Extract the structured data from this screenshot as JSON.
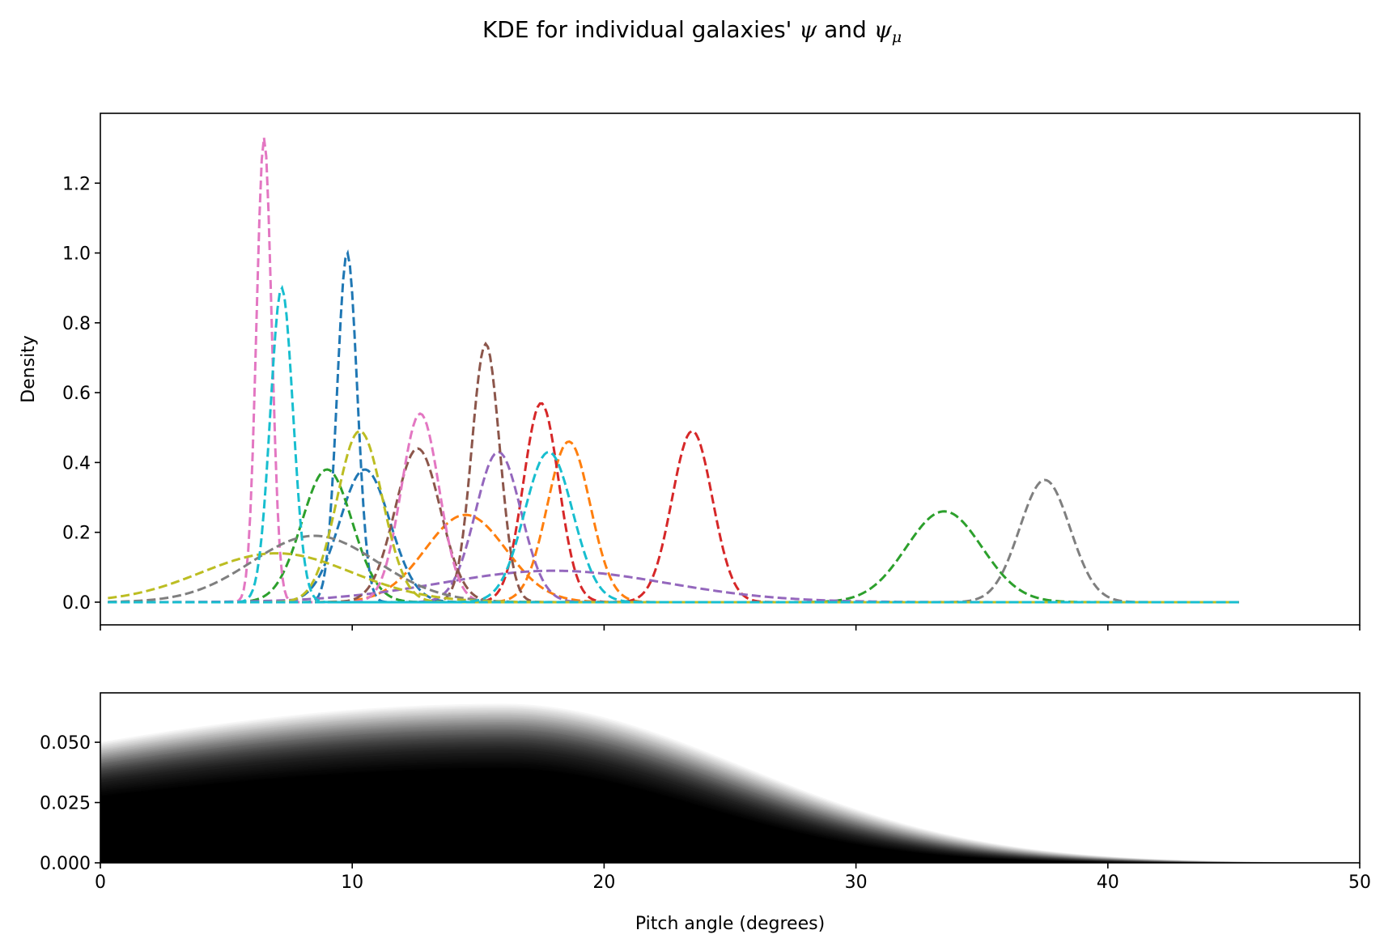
{
  "title": {
    "prefix": "KDE for individual galaxies' ",
    "psi": "ψ",
    "and": " and ",
    "psi_mu": "ψ",
    "sub": "μ"
  },
  "chart_data": [
    {
      "type": "line",
      "panel": "top",
      "ylabel": "Density",
      "xlabel": "",
      "xlim": [
        0,
        50
      ],
      "ylim": [
        -0.065,
        1.4
      ],
      "x_ticks": [
        0,
        10,
        20,
        30,
        40,
        50
      ],
      "show_x_tick_labels": false,
      "y_ticks": [
        0.0,
        0.2,
        0.4,
        0.6,
        0.8,
        1.0,
        1.2
      ],
      "y_tick_labels": [
        "0.0",
        "0.2",
        "0.4",
        "0.6",
        "0.8",
        "1.0",
        "1.2"
      ],
      "line_style": "dashed",
      "grid": false,
      "series": [
        {
          "color": "#1f77b4",
          "peak_x": 9.8,
          "peak_y": 1.0,
          "sigma": 0.4
        },
        {
          "color": "#1f77b4",
          "peak_x": 10.5,
          "peak_y": 0.38,
          "sigma": 1.0
        },
        {
          "color": "#ff7f0e",
          "peak_x": 14.5,
          "peak_y": 0.25,
          "sigma": 1.6
        },
        {
          "color": "#ff7f0e",
          "peak_x": 18.6,
          "peak_y": 0.46,
          "sigma": 0.85
        },
        {
          "color": "#2ca02c",
          "peak_x": 9.0,
          "peak_y": 0.38,
          "sigma": 1.0
        },
        {
          "color": "#2ca02c",
          "peak_x": 33.5,
          "peak_y": 0.26,
          "sigma": 1.5
        },
        {
          "color": "#d62728",
          "peak_x": 17.5,
          "peak_y": 0.57,
          "sigma": 0.7
        },
        {
          "color": "#d62728",
          "peak_x": 23.5,
          "peak_y": 0.49,
          "sigma": 0.8
        },
        {
          "color": "#9467bd",
          "peak_x": 15.8,
          "peak_y": 0.43,
          "sigma": 0.9
        },
        {
          "color": "#9467bd",
          "peak_x": 18.0,
          "peak_y": 0.09,
          "sigma": 4.5
        },
        {
          "color": "#8c564b",
          "peak_x": 12.6,
          "peak_y": 0.44,
          "sigma": 0.9
        },
        {
          "color": "#8c564b",
          "peak_x": 15.3,
          "peak_y": 0.74,
          "sigma": 0.55
        },
        {
          "color": "#e377c2",
          "peak_x": 6.5,
          "peak_y": 1.33,
          "sigma": 0.3
        },
        {
          "color": "#e377c2",
          "peak_x": 12.7,
          "peak_y": 0.54,
          "sigma": 0.75
        },
        {
          "color": "#7f7f7f",
          "peak_x": 8.5,
          "peak_y": 0.19,
          "sigma": 2.5
        },
        {
          "color": "#7f7f7f",
          "peak_x": 37.5,
          "peak_y": 0.35,
          "sigma": 1.0
        },
        {
          "color": "#bcbd22",
          "peak_x": 7.0,
          "peak_y": 0.14,
          "sigma": 3.0
        },
        {
          "color": "#bcbd22",
          "peak_x": 10.3,
          "peak_y": 0.49,
          "sigma": 0.9
        },
        {
          "color": "#17becf",
          "peak_x": 7.2,
          "peak_y": 0.9,
          "sigma": 0.45
        },
        {
          "color": "#17becf",
          "peak_x": 17.8,
          "peak_y": 0.43,
          "sigma": 0.95
        }
      ]
    },
    {
      "type": "area",
      "panel": "bottom",
      "xlabel": "Pitch angle (degrees)",
      "ylabel": "",
      "xlim": [
        0,
        50
      ],
      "ylim": [
        0,
        0.0705
      ],
      "x_ticks": [
        0,
        10,
        20,
        30,
        40,
        50
      ],
      "x_tick_labels": [
        "0",
        "10",
        "20",
        "30",
        "40",
        "50"
      ],
      "y_ticks": [
        0.0,
        0.025,
        0.05
      ],
      "y_tick_labels": [
        "0.000",
        "0.025",
        "0.050"
      ],
      "color": "#000000",
      "grid": false,
      "envelope": {
        "peak_x": 16.0,
        "peak_y_range": [
          0.035,
          0.066
        ],
        "y_at_0_range": [
          0.008,
          0.022
        ],
        "tail_end_x": 45
      }
    }
  ]
}
